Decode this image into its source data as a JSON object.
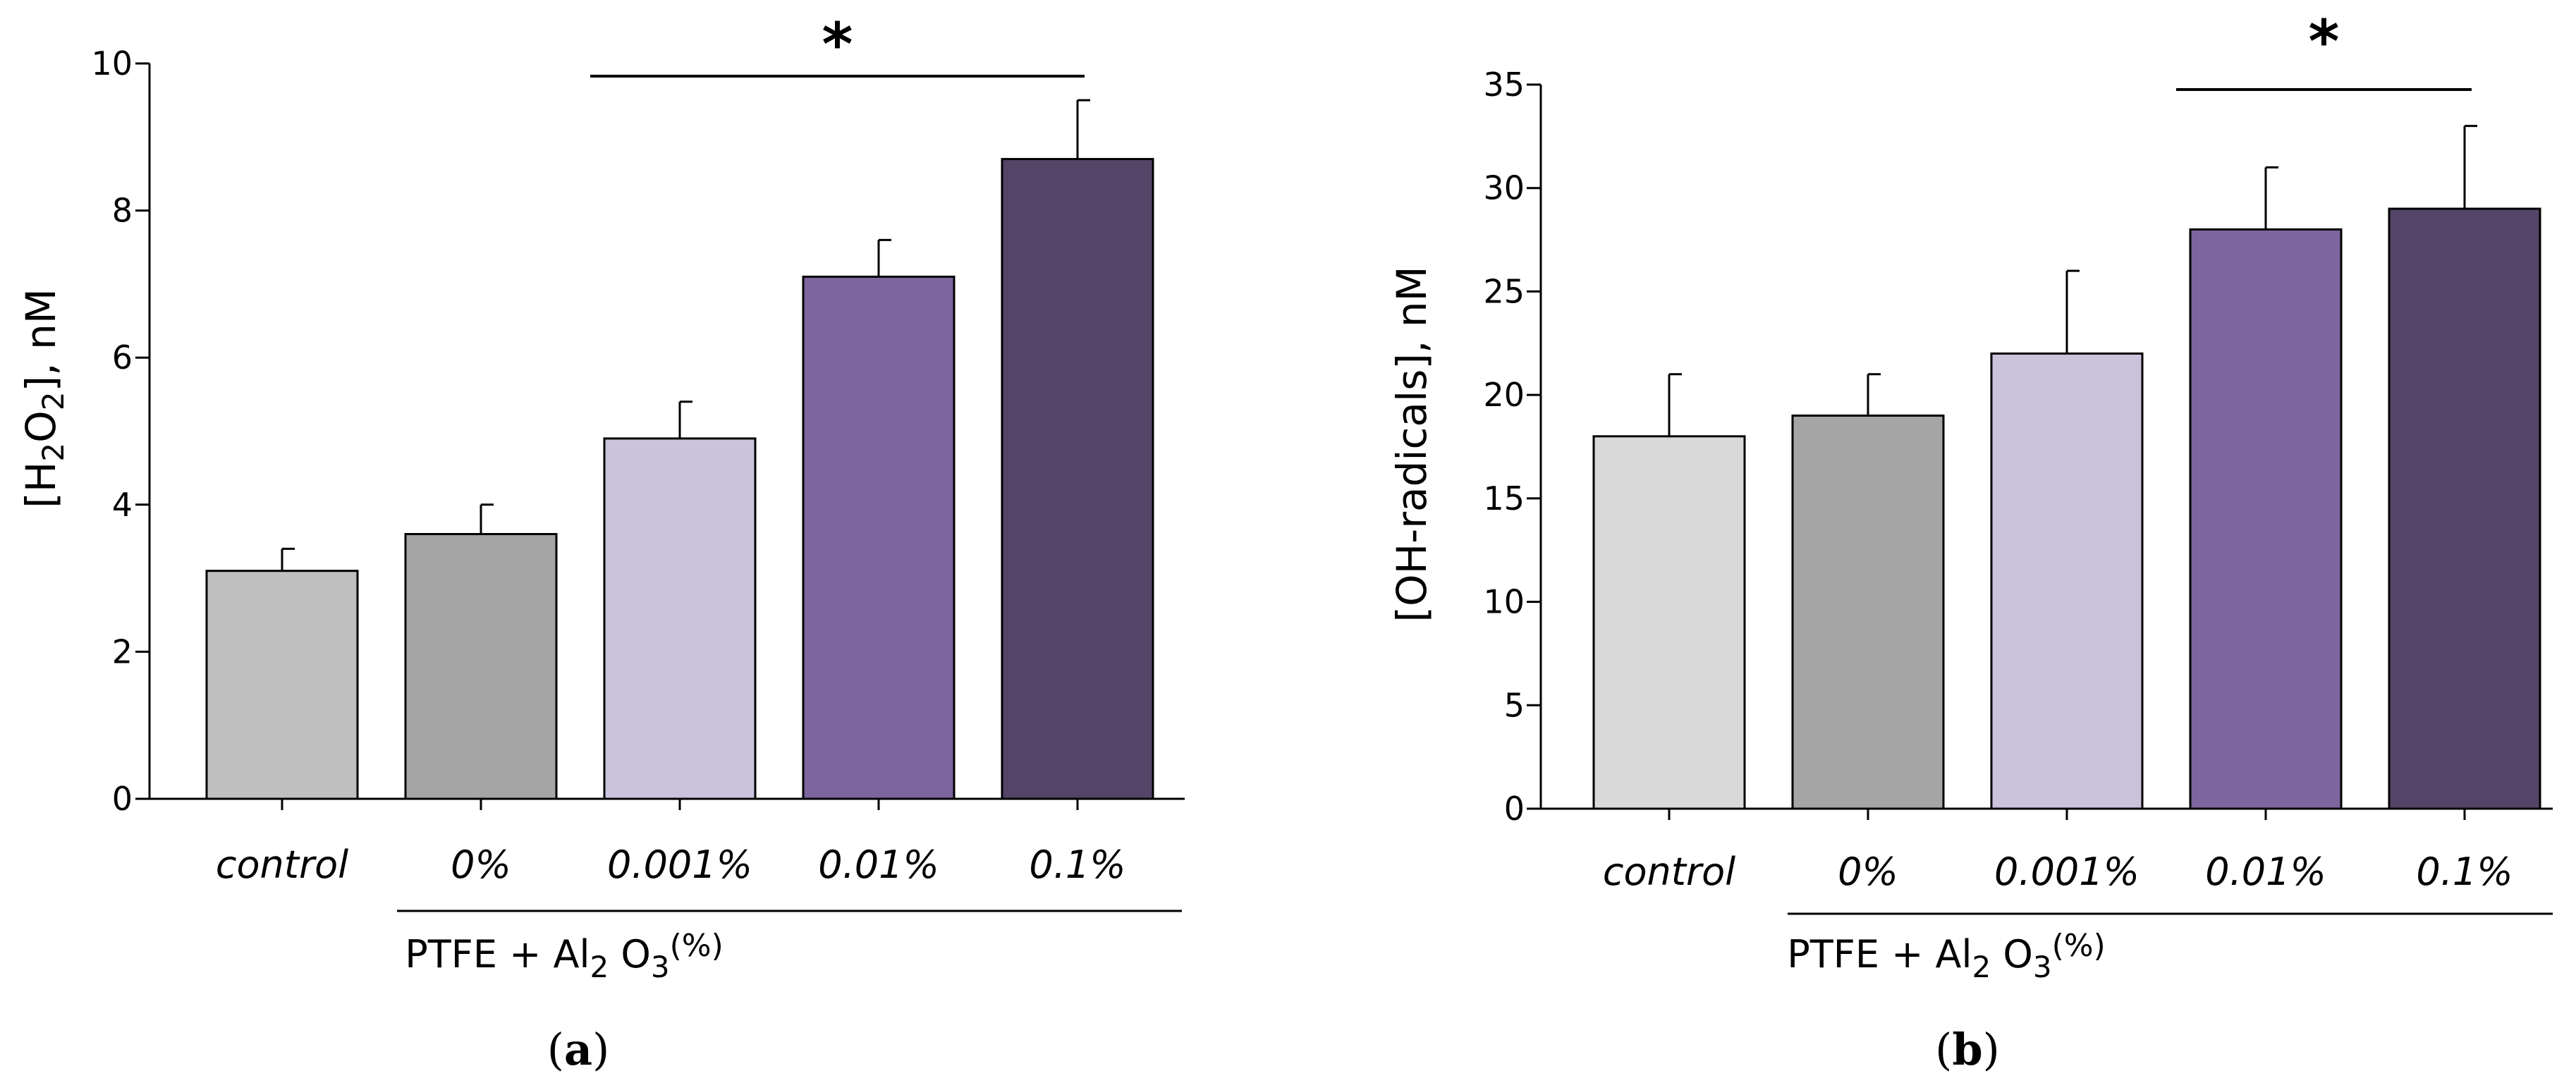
{
  "chart_data": [
    {
      "type": "bar",
      "panel_label": "(a)",
      "panel_label_parts": {
        "open": "(",
        "letter": "a",
        "close": ")"
      },
      "categories": [
        "control",
        "0%",
        "0.001%",
        "0.01%",
        "0.1%"
      ],
      "values": [
        3.1,
        3.6,
        4.9,
        7.1,
        8.7
      ],
      "errors": [
        0.3,
        0.4,
        0.5,
        0.5,
        0.8
      ],
      "colors": [
        "#bfbfbf",
        "#a5a5a5",
        "#cbc2dc",
        "#7d659d",
        "#544467"
      ],
      "ylim": [
        0,
        10
      ],
      "yticks": [
        0,
        2,
        4,
        6,
        8,
        10
      ],
      "ylabel": "[H2O2], nM",
      "ylabel_parts": {
        "prefix": "[H",
        "sub1": "2",
        "mid": "O",
        "sub2": "2",
        "suffix": "], nM"
      },
      "group_label": "PTFE + Al2O3(%)",
      "group_label_parts": {
        "prefix": "PTFE + Al",
        "sub1": "2",
        "mid": "O",
        "sub2": "3",
        "sup": "(%)"
      },
      "group_categories": [
        "0%",
        "0.001%",
        "0.01%",
        "0.1%"
      ],
      "significance": {
        "from": "0.001%",
        "to": "0.1%",
        "symbol": "*"
      },
      "grid": false,
      "legend": false
    },
    {
      "type": "bar",
      "panel_label": "(b)",
      "panel_label_parts": {
        "open": "(",
        "letter": "b",
        "close": ")"
      },
      "categories": [
        "control",
        "0%",
        "0.001%",
        "0.01%",
        "0.1%"
      ],
      "values": [
        18,
        19,
        22,
        28,
        29
      ],
      "errors": [
        3,
        2,
        4,
        3,
        4
      ],
      "colors": [
        "#d9d9d9",
        "#a5a5a5",
        "#cbc2dc",
        "#7d659d",
        "#544467"
      ],
      "ylim": [
        0,
        35
      ],
      "yticks": [
        0,
        5,
        10,
        15,
        20,
        25,
        30,
        35
      ],
      "ylabel": "[OH-radicals], nM",
      "group_label": "PTFE + Al2O3(%)",
      "group_label_parts": {
        "prefix": "PTFE + Al",
        "sub1": "2",
        "mid": "O",
        "sub2": "3",
        "sup": "(%)"
      },
      "group_categories": [
        "0%",
        "0.001%",
        "0.01%",
        "0.1%"
      ],
      "significance": {
        "from": "0.01%",
        "to": "0.1%",
        "symbol": "*"
      },
      "grid": false,
      "legend": false
    }
  ]
}
